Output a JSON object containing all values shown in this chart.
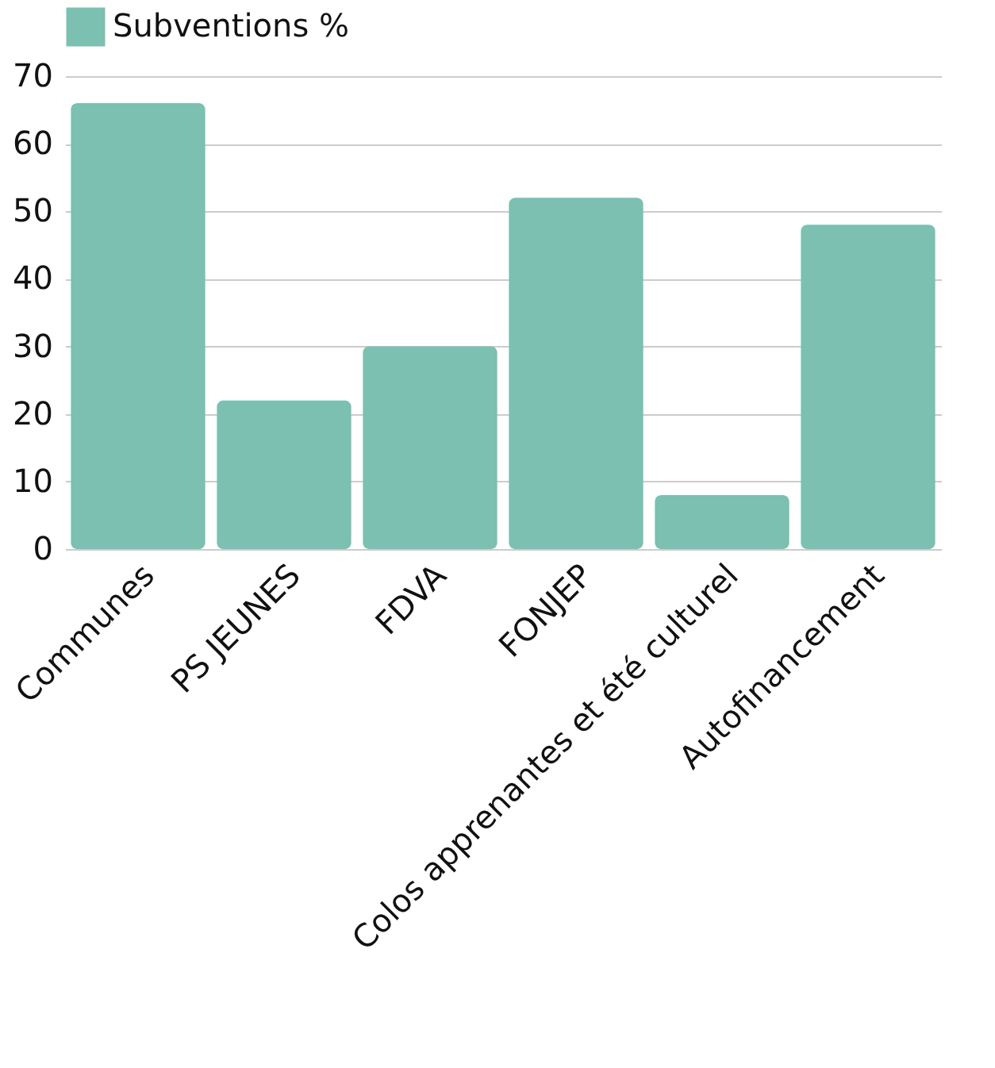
{
  "chart_data": {
    "type": "bar",
    "categories": [
      "Communes",
      "PS JEUNES",
      "FDVA",
      "FONJEP",
      "Colos apprenantes et été culturel",
      "Autofinancement"
    ],
    "series": [
      {
        "name": "Subventions %",
        "color": "#7bc0b0",
        "values": [
          66,
          22,
          30,
          52,
          8,
          48
        ]
      }
    ],
    "ylim": [
      0,
      70
    ],
    "yticks": [
      0,
      10,
      20,
      30,
      40,
      50,
      60,
      70
    ],
    "grid": "y",
    "legend": "top"
  }
}
